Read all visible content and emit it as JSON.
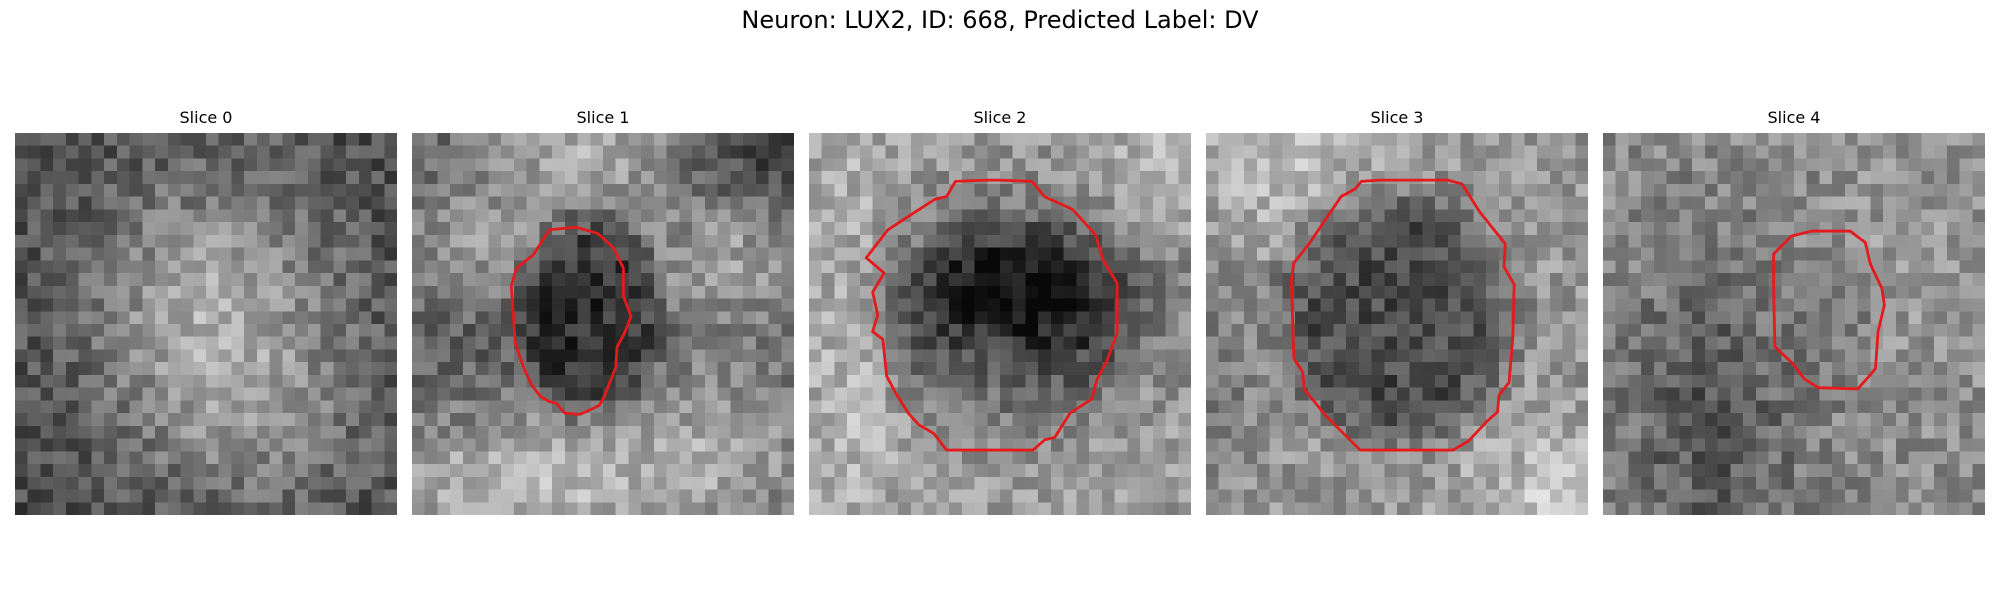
{
  "figure": {
    "title": "Neuron: LUX2, ID: 668, Predicted Label: DV",
    "contour_color": "#e41a1c"
  },
  "panels": [
    {
      "title": "Slice 0",
      "pattern": "bright-blob",
      "has_contour": false
    },
    {
      "title": "Slice 1",
      "pattern": "dark-hole-top-bright",
      "has_contour": true
    },
    {
      "title": "Slice 2",
      "pattern": "dark-upper-ring",
      "has_contour": true
    },
    {
      "title": "Slice 3",
      "pattern": "dark-large-disc",
      "has_contour": true
    },
    {
      "title": "Slice 4",
      "pattern": "noisy-dark-band",
      "has_contour": true
    }
  ]
}
